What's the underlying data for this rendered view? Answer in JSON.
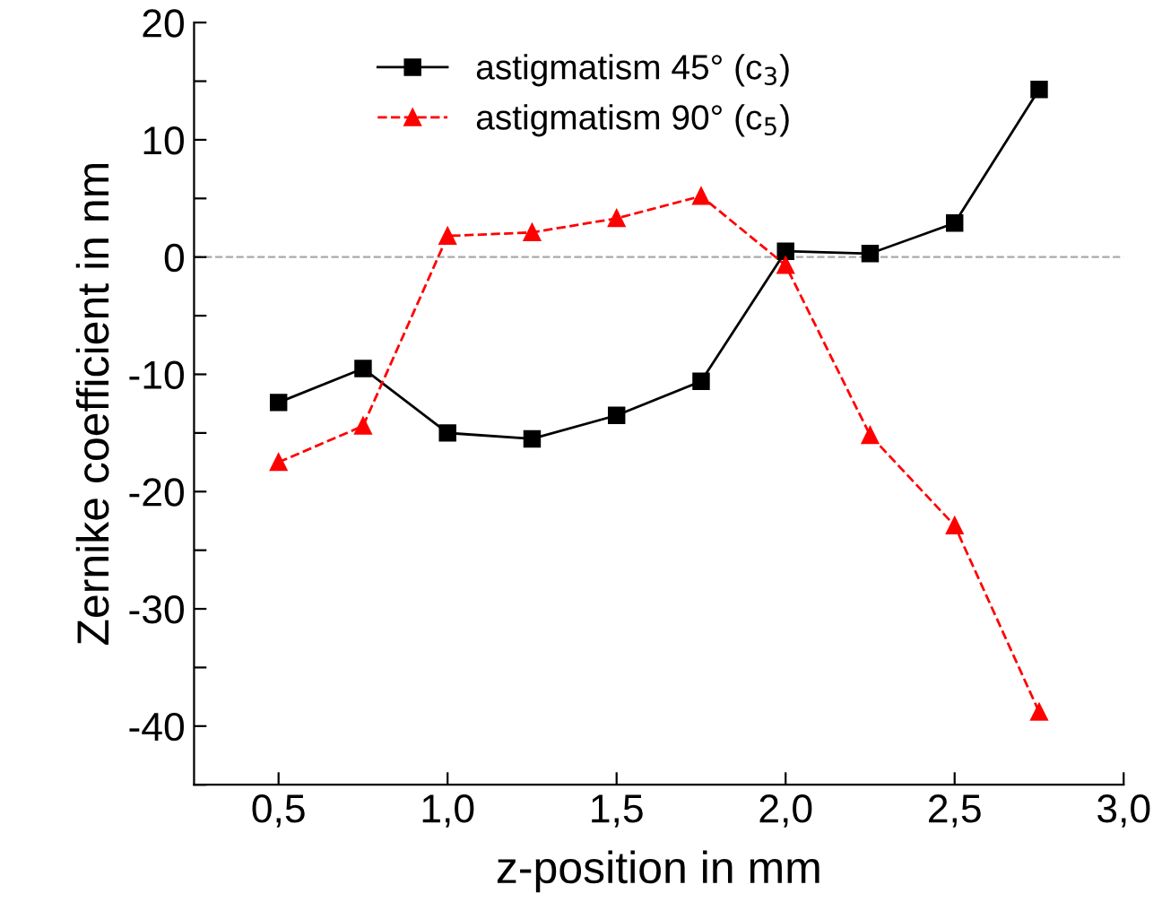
{
  "chart_data": {
    "type": "line",
    "xlabel": "z-position in mm",
    "ylabel": "Zernike coefficient in nm",
    "x": [
      0.5,
      0.75,
      1.0,
      1.25,
      1.5,
      1.75,
      2.0,
      2.25,
      2.5,
      2.75
    ],
    "series": [
      {
        "name": "astigmatism 45° (c$_{3}$)",
        "color": "#000000",
        "marker": "square",
        "line_style": "solid",
        "values": [
          -12.4,
          -9.5,
          -15.0,
          -15.5,
          -13.5,
          -10.6,
          0.5,
          0.3,
          2.9,
          14.3
        ]
      },
      {
        "name": "astigmatism 90° (c$_{5}$)",
        "color": "#ff0000",
        "marker": "triangle",
        "line_style": "dashed",
        "values": [
          -17.5,
          -14.4,
          1.8,
          2.1,
          3.3,
          5.2,
          -0.7,
          -15.2,
          -22.9,
          -38.8
        ]
      }
    ],
    "xlim": [
      0.25,
      3.0
    ],
    "xticks": [
      {
        "value": 0.5,
        "label": "0,5"
      },
      {
        "value": 1.0,
        "label": "1,0"
      },
      {
        "value": 1.5,
        "label": "1,5"
      },
      {
        "value": 2.0,
        "label": "2,0"
      },
      {
        "value": 2.5,
        "label": "2,5"
      },
      {
        "value": 3.0,
        "label": "3,0"
      }
    ],
    "ylim": [
      -45,
      20
    ],
    "yticks": [
      {
        "value": -45,
        "label": null
      },
      -40,
      {
        "value": -35,
        "label": null
      },
      -30,
      {
        "value": -25,
        "label": null
      },
      -20,
      {
        "value": -15,
        "label": null
      },
      -10,
      {
        "value": -5,
        "label": null
      },
      0,
      {
        "value": 5,
        "label": null
      },
      10,
      {
        "value": 15,
        "label": null
      },
      20
    ],
    "ref_lines": [
      {
        "axis": "y",
        "value": 0,
        "label": null,
        "color": "#aaaaaa",
        "line_style": "dashed"
      }
    ],
    "grid": false,
    "legend": "top"
  }
}
